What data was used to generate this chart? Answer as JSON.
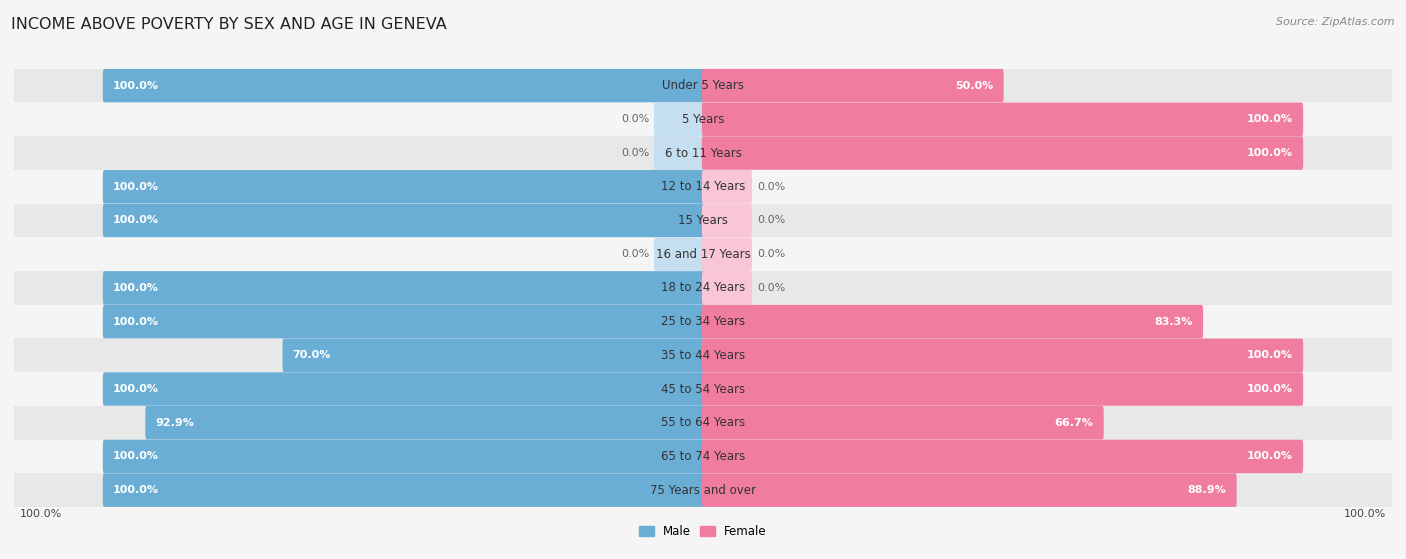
{
  "title": "INCOME ABOVE POVERTY BY SEX AND AGE IN GENEVA",
  "source": "Source: ZipAtlas.com",
  "categories": [
    "Under 5 Years",
    "5 Years",
    "6 to 11 Years",
    "12 to 14 Years",
    "15 Years",
    "16 and 17 Years",
    "18 to 24 Years",
    "25 to 34 Years",
    "35 to 44 Years",
    "45 to 54 Years",
    "55 to 64 Years",
    "65 to 74 Years",
    "75 Years and over"
  ],
  "male_values": [
    100.0,
    0.0,
    0.0,
    100.0,
    100.0,
    0.0,
    100.0,
    100.0,
    70.0,
    100.0,
    92.9,
    100.0,
    100.0
  ],
  "female_values": [
    50.0,
    100.0,
    100.0,
    0.0,
    0.0,
    0.0,
    0.0,
    83.3,
    100.0,
    100.0,
    66.7,
    100.0,
    88.9
  ],
  "male_color": "#6aaed6",
  "female_color": "#f07ca0",
  "male_light_color": "#c6dff0",
  "female_light_color": "#f9c6d5",
  "male_label": "Male",
  "female_label": "Female",
  "bg_color": "#f5f5f5",
  "row_color_dark": "#e8e8e8",
  "row_color_light": "#f5f5f5",
  "max_value": 100.0,
  "bar_height": 0.62,
  "title_fontsize": 11.5,
  "label_fontsize": 8.0,
  "value_fontsize": 8.0,
  "tick_fontsize": 8.0,
  "source_fontsize": 8.0,
  "cat_label_fontsize": 8.5
}
